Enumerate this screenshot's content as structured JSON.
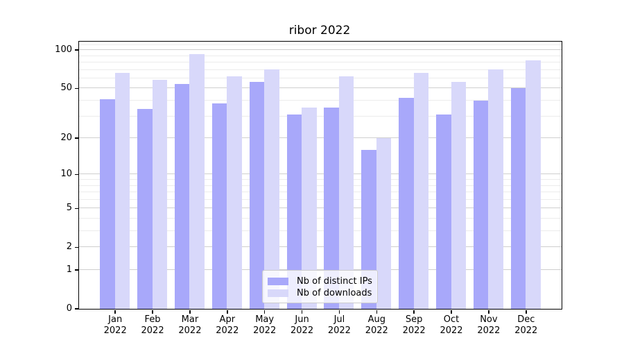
{
  "chart_data": {
    "type": "bar",
    "title": "ribor 2022",
    "categories": [
      "Jan 2022",
      "Feb 2022",
      "Mar 2022",
      "Apr 2022",
      "May 2022",
      "Jun 2022",
      "Jul 2022",
      "Aug 2022",
      "Sep 2022",
      "Oct 2022",
      "Nov 2022",
      "Dec 2022"
    ],
    "series": [
      {
        "name": "Nb of distinct IPs",
        "color": "#a8a8fa",
        "values": [
          41,
          34,
          54,
          38,
          56,
          31,
          35,
          16,
          42,
          31,
          40,
          50
        ]
      },
      {
        "name": "Nb of downloads",
        "color": "#d8d8fa",
        "values": [
          66,
          58,
          93,
          62,
          70,
          35,
          62,
          20,
          66,
          56,
          70,
          83
        ]
      }
    ],
    "xlabel": "",
    "ylabel": "",
    "yscale": "log10(1+v)",
    "ylim": [
      0,
      117
    ],
    "y_ticks": [
      0,
      1,
      2,
      5,
      10,
      20,
      50,
      100
    ],
    "grid": true,
    "legend_position": "lower center"
  },
  "y_axis": {
    "minor_ticks": [
      3,
      4,
      6,
      7,
      8,
      9,
      30,
      40,
      60,
      70,
      80,
      90,
      110
    ]
  },
  "axis_colors": {
    "spine": "#000000",
    "grid_major": "#cfcfcf",
    "grid_minor": "#ececec"
  }
}
